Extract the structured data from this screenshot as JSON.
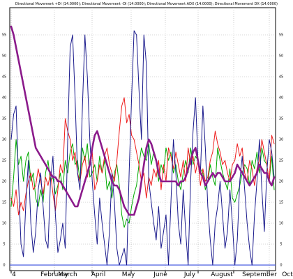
{
  "chart_data": {
    "type": "line",
    "title": "Directional Movement +DI (14.0000); Directional Movement -DI (14.0000); Directional Movement ADX (14.0000); Directional Movement DX (14.0000)",
    "xlabel": "",
    "ylabel": "",
    "ylim": [
      -5,
      60
    ],
    "yticks": [
      -5,
      0,
      5,
      10,
      15,
      20,
      25,
      30,
      35,
      40,
      45,
      50,
      55
    ],
    "grid": true,
    "legend": "none",
    "x_tick_labels": [
      "4",
      "February",
      "March",
      "April",
      "May",
      "June",
      "July",
      "August",
      "September",
      "Oct"
    ],
    "reference_line": {
      "value": 0,
      "color": "#4a5ee0"
    },
    "series": [
      {
        "name": "+DI",
        "color": "#00aa00",
        "values": [
          14,
          21,
          30,
          24,
          26,
          20,
          25,
          27,
          20,
          22,
          16,
          14,
          18,
          15,
          22,
          25,
          20,
          21,
          17,
          19,
          22,
          18,
          25,
          22,
          27,
          29,
          24,
          25,
          20,
          28,
          25,
          29,
          21,
          22,
          24,
          20,
          26,
          22,
          25,
          18,
          20,
          16,
          22,
          24,
          19,
          12,
          9,
          11,
          10,
          14,
          17,
          19,
          24,
          28,
          26,
          25,
          29,
          24,
          27,
          25,
          20,
          24,
          22,
          28,
          25,
          27,
          22,
          24,
          20,
          18,
          22,
          25,
          22,
          28,
          24,
          26,
          25,
          23,
          22,
          18,
          20,
          24,
          21,
          19,
          28,
          25,
          22,
          20,
          18,
          23,
          16,
          15,
          17,
          19,
          22,
          24,
          23,
          19,
          25,
          23,
          27,
          22,
          28,
          25,
          24,
          20,
          26,
          18
        ]
      },
      {
        "name": "-DI",
        "color": "#ee1c1c",
        "values": [
          16,
          14,
          18,
          12,
          15,
          13,
          17,
          20,
          22,
          18,
          19,
          23,
          20,
          17,
          21,
          19,
          22,
          17,
          13,
          18,
          24,
          22,
          35,
          32,
          30,
          25,
          27,
          22,
          20,
          24,
          26,
          21,
          24,
          27,
          18,
          20,
          24,
          22,
          26,
          28,
          24,
          22,
          20,
          25,
          32,
          38,
          40,
          34,
          36,
          31,
          30,
          27,
          24,
          20,
          22,
          16,
          21,
          19,
          23,
          21,
          25,
          18,
          24,
          20,
          28,
          26,
          23,
          27,
          24,
          21,
          25,
          20,
          28,
          24,
          26,
          22,
          25,
          19,
          23,
          20,
          21,
          25,
          27,
          32,
          29,
          27,
          24,
          25,
          22,
          20,
          24,
          25,
          29,
          26,
          28,
          22,
          20,
          25,
          23,
          19,
          23,
          25,
          30,
          27,
          24,
          20,
          31,
          29
        ]
      },
      {
        "name": "ADX",
        "color": "#8b1a8b",
        "values": [
          57,
          55,
          52,
          49,
          46,
          43,
          40,
          37,
          34,
          31,
          28,
          27,
          26,
          25,
          24,
          23,
          22,
          21,
          21,
          20,
          20,
          19,
          18,
          17,
          16,
          15,
          14,
          14,
          16,
          18,
          20,
          22,
          24,
          28,
          31,
          32,
          30,
          28,
          26,
          24,
          22,
          20,
          19,
          19,
          18,
          16,
          14,
          13,
          12,
          12,
          12,
          14,
          16,
          20,
          24,
          28,
          30,
          29,
          27,
          25,
          22,
          20,
          20,
          20,
          20,
          20,
          20,
          20,
          19,
          20,
          20,
          21,
          23,
          25,
          27,
          28,
          25,
          22,
          21,
          19,
          20,
          21,
          22,
          21,
          22,
          22,
          21,
          20,
          20,
          20,
          21,
          22,
          24,
          23,
          22,
          21,
          20,
          19,
          20,
          21,
          22,
          24,
          23,
          22,
          22,
          20,
          19,
          21
        ]
      },
      {
        "name": "DX",
        "color": "#1a1a8c",
        "values": [
          30,
          36,
          38,
          20,
          5,
          2,
          15,
          25,
          10,
          3,
          8,
          18,
          22,
          14,
          6,
          4,
          20,
          26,
          12,
          3,
          6,
          10,
          4,
          30,
          52,
          55,
          40,
          22,
          18,
          38,
          55,
          45,
          30,
          20,
          12,
          5,
          16,
          10,
          5,
          0,
          8,
          22,
          15,
          4,
          0,
          2,
          4,
          0,
          22,
          40,
          56,
          55,
          42,
          30,
          55,
          48,
          20,
          15,
          10,
          6,
          14,
          4,
          8,
          12,
          0,
          15,
          30,
          22,
          10,
          5,
          18,
          8,
          0,
          20,
          32,
          40,
          25,
          22,
          38,
          28,
          14,
          6,
          0,
          10,
          14,
          20,
          12,
          4,
          8,
          18,
          10,
          0,
          6,
          20,
          26,
          18,
          10,
          4,
          0,
          12,
          20,
          30,
          18,
          8,
          22,
          30,
          27,
          21
        ]
      }
    ]
  }
}
